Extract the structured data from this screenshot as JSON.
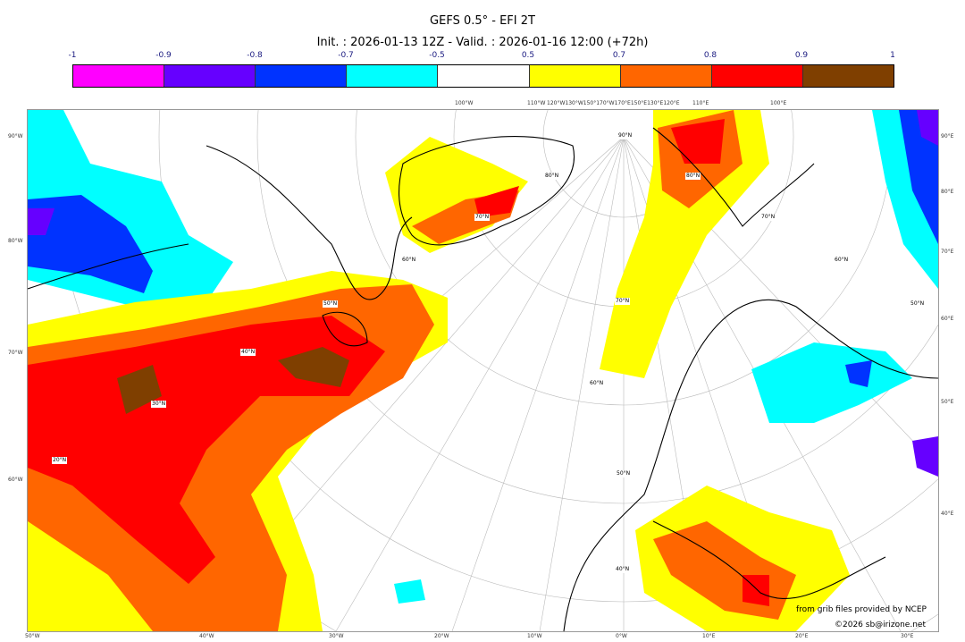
{
  "title": "GEFS 0.5° - EFI 2T",
  "subtitle": "Init. : 2026-01-13 12Z - Valid. : 2026-01-16 12:00 (+72h)",
  "colorbar": {
    "labels": [
      "-1",
      "-0.9",
      "-0.8",
      "-0.7",
      "-0.5",
      "0.5",
      "0.7",
      "0.8",
      "0.9",
      "1"
    ],
    "colors": [
      "#ff00ff",
      "#6600ff",
      "#0033ff",
      "#00ffff",
      "#ffffff",
      "#ffff00",
      "#ff6600",
      "#ff0000",
      "#7f3f00"
    ]
  },
  "axes": {
    "top": [
      "100°W",
      "110°W",
      "120°W130°W150°170°W170°E150°E130°E120°E",
      "110°E",
      "100°E"
    ],
    "left": [
      "90°W",
      "80°W",
      "70°W",
      "60°W"
    ],
    "right": [
      "90°E",
      "80°E",
      "70°E",
      "60°E",
      "50°E",
      "40°E"
    ],
    "bottom": [
      "50°W",
      "40°W",
      "30°W",
      "20°W",
      "10°W",
      "0°W",
      "10°E",
      "20°E",
      "30°E"
    ]
  },
  "lat_labels": [
    "90°N",
    "80°N",
    "80°N",
    "70°N",
    "70°N",
    "70°N",
    "60°N",
    "60°N",
    "60°N",
    "50°N",
    "50°N",
    "50°N",
    "40°N",
    "40°N",
    "30°N",
    "20°N"
  ],
  "credits": {
    "source": "from grib files provided by NCEP",
    "copyright": "©2026 sb@irizone.net"
  }
}
